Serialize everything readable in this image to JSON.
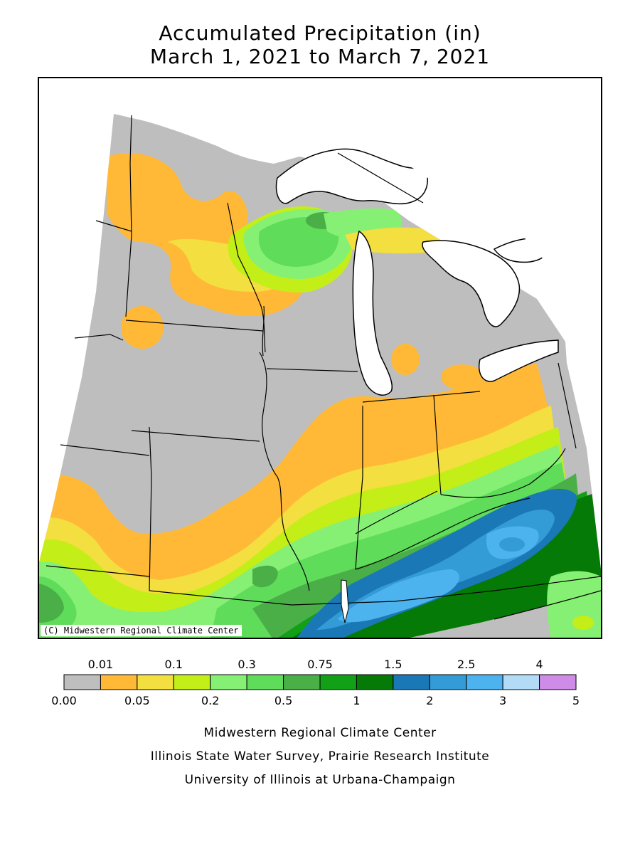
{
  "title": {
    "line1": "Accumulated Precipitation (in)",
    "line2": "March 1, 2021 to March 7, 2021"
  },
  "map": {
    "credit": "(C) Midwestern Regional Climate Center",
    "region_name_hidden": "",
    "colors": {
      "land_background": "#bebebe",
      "water": "#ffffff",
      "borders": "#000000"
    }
  },
  "legend": {
    "bins": [
      {
        "color": "#bebebe"
      },
      {
        "color": "#ffb937"
      },
      {
        "color": "#f3df3f"
      },
      {
        "color": "#c4ee17"
      },
      {
        "color": "#86f074"
      },
      {
        "color": "#5fdc5a"
      },
      {
        "color": "#4aaf47"
      },
      {
        "color": "#12a017"
      },
      {
        "color": "#067a06"
      },
      {
        "color": "#1b78b7"
      },
      {
        "color": "#339cd7"
      },
      {
        "color": "#4cb3ee"
      },
      {
        "color": "#b2dcf5"
      },
      {
        "color": "#ce8ce6"
      }
    ],
    "top_labels": [
      {
        "text": "0.01",
        "index": 1
      },
      {
        "text": "0.1",
        "index": 3
      },
      {
        "text": "0.3",
        "index": 5
      },
      {
        "text": "0.75",
        "index": 7
      },
      {
        "text": "1.5",
        "index": 9
      },
      {
        "text": "2.5",
        "index": 11
      },
      {
        "text": "4",
        "index": 13
      }
    ],
    "bottom_labels": [
      {
        "text": "0.00",
        "index": 0
      },
      {
        "text": "0.05",
        "index": 2
      },
      {
        "text": "0.2",
        "index": 4
      },
      {
        "text": "0.5",
        "index": 6
      },
      {
        "text": "1",
        "index": 8
      },
      {
        "text": "2",
        "index": 10
      },
      {
        "text": "3",
        "index": 12
      },
      {
        "text": "5",
        "index": 14
      }
    ]
  },
  "footer": {
    "line1": "Midwestern Regional Climate Center",
    "line2": "Illinois State Water Survey, Prairie Research Institute",
    "line3": "University of Illinois at Urbana-Champaign"
  }
}
